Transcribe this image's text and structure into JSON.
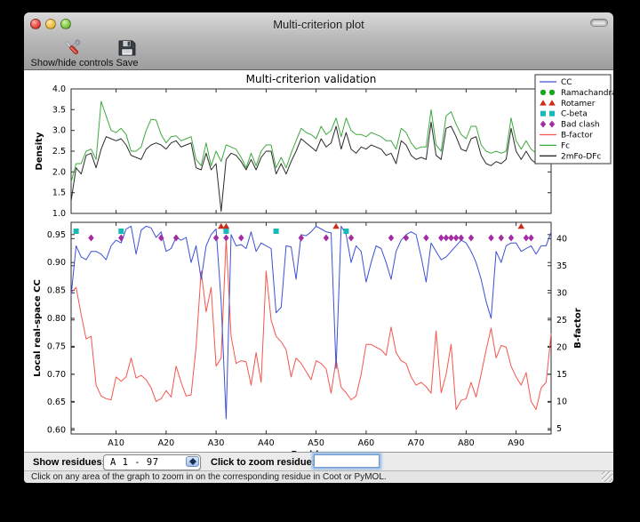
{
  "window": {
    "title": "Multi-criterion plot"
  },
  "toolbar": {
    "show_hide_label": "Show/hide controls",
    "save_label": "Save"
  },
  "controls": {
    "show_residues_label": "Show residues:",
    "residue_range_value": "A  1 - 97",
    "zoom_label": "Click to zoom residue:",
    "zoom_input_value": ""
  },
  "statusbar": {
    "text": "Click on any area of the graph to zoom in on the corresponding residue in Coot or PyMOL."
  },
  "chart_data": {
    "type": "line",
    "title": "Multi-criterion validation",
    "x_range": [
      1,
      97
    ],
    "x_unit": "residue",
    "top_plot": {
      "ylabel": "Density",
      "ylim": [
        1.0,
        4.0
      ],
      "yticks": [
        "1.0",
        "1.5",
        "2.0",
        "2.5",
        "3.0",
        "3.5",
        "4.0"
      ],
      "series": [
        {
          "name": "Fc",
          "color": "#3fa83f",
          "values": [
            1.75,
            2.2,
            2.2,
            2.5,
            2.55,
            2.3,
            3.7,
            3.35,
            3.0,
            2.95,
            3.05,
            2.9,
            2.5,
            2.5,
            2.6,
            3.0,
            3.27,
            3.25,
            2.9,
            2.7,
            2.85,
            2.87,
            2.75,
            2.8,
            2.85,
            2.3,
            2.15,
            2.7,
            2.15,
            2.5,
            2.25,
            2.65,
            2.6,
            2.55,
            2.35,
            2.1,
            2.45,
            2.15,
            2.5,
            2.65,
            2.65,
            2.1,
            2.35,
            2.1,
            2.45,
            2.75,
            3.05,
            2.95,
            2.9,
            2.8,
            3.1,
            2.9,
            3.0,
            3.3,
            2.85,
            3.3,
            3.0,
            2.9,
            2.9,
            2.85,
            2.95,
            2.9,
            2.85,
            2.75,
            2.75,
            2.55,
            3.05,
            2.95,
            2.7,
            2.55,
            2.6,
            2.6,
            3.5,
            2.65,
            2.5,
            3.35,
            3.45,
            3.15,
            2.9,
            2.8,
            3.1,
            3.1,
            2.65,
            2.5,
            2.45,
            2.5,
            2.45,
            2.5,
            3.3,
            2.75,
            2.55,
            2.75,
            2.55,
            2.45,
            2.6,
            3.55,
            3.4
          ]
        },
        {
          "name": "2mFo-DFc",
          "color": "#2b2b2b",
          "values": [
            1.3,
            2.1,
            1.95,
            2.4,
            2.45,
            2.1,
            2.55,
            2.85,
            2.8,
            2.75,
            2.8,
            2.65,
            2.4,
            2.35,
            2.3,
            2.55,
            2.65,
            2.7,
            2.65,
            2.55,
            2.7,
            2.75,
            2.6,
            2.65,
            2.7,
            2.1,
            2.05,
            2.45,
            2.05,
            2.2,
            1.05,
            2.3,
            2.45,
            2.4,
            2.25,
            2.05,
            2.3,
            2.05,
            2.35,
            2.5,
            2.5,
            1.95,
            2.2,
            1.95,
            2.25,
            2.5,
            2.8,
            2.7,
            2.6,
            2.5,
            2.8,
            2.6,
            2.7,
            3.1,
            2.55,
            2.95,
            2.55,
            2.45,
            2.6,
            2.55,
            2.65,
            2.6,
            2.55,
            2.4,
            2.45,
            2.2,
            2.75,
            2.65,
            2.4,
            2.3,
            2.35,
            2.3,
            3.2,
            2.4,
            2.3,
            3.05,
            3.1,
            2.85,
            2.55,
            2.5,
            2.8,
            2.85,
            2.4,
            2.2,
            2.15,
            2.25,
            2.2,
            2.3,
            3.05,
            2.5,
            2.3,
            2.5,
            2.3,
            2.2,
            2.35,
            3.2,
            3.1
          ]
        }
      ]
    },
    "bottom_plot": {
      "ylabel_left": "Local real-space CC",
      "ylabel_right": "B-factor",
      "xlabel": "Residue",
      "ylim_left": [
        0.593,
        0.972
      ],
      "yticks_left": [
        "0.60",
        "0.65",
        "0.70",
        "0.75",
        "0.80",
        "0.85",
        "0.90",
        "0.95"
      ],
      "ylim_right": [
        4.0,
        43.0
      ],
      "yticks_right": [
        "5",
        "10",
        "15",
        "20",
        "25",
        "30",
        "35",
        "40"
      ],
      "xticks": [
        10,
        20,
        30,
        40,
        50,
        60,
        70,
        80,
        90
      ],
      "xtick_labels": [
        "A10",
        "A20",
        "A30",
        "A40",
        "A50",
        "A60",
        "A70",
        "A80",
        "A90"
      ],
      "series": [
        {
          "name": "B-factor",
          "axis": "right",
          "color": "#f4564e",
          "values": [
            30,
            31,
            26,
            21.5,
            22,
            13,
            11,
            10.5,
            10.3,
            14.5,
            13.7,
            14.5,
            18,
            14.3,
            14.8,
            14,
            12.5,
            10,
            10.5,
            12,
            10.8,
            16.5,
            13.5,
            11,
            11.2,
            20,
            34,
            26.5,
            31,
            16.5,
            18,
            40,
            22,
            17,
            17.5,
            17.3,
            13,
            19,
            13.5,
            34,
            25,
            22,
            21,
            19.5,
            14.5,
            18,
            17,
            15.5,
            14,
            17.5,
            17,
            16,
            11.5,
            17.7,
            12.6,
            11.6,
            10.3,
            11,
            15,
            20.5,
            20.5,
            20,
            19.5,
            18.5,
            23.7,
            19,
            17.5,
            17,
            14.5,
            13,
            13.5,
            12.7,
            11.5,
            23,
            11.6,
            15,
            20.5,
            8.5,
            10.2,
            10.5,
            13.5,
            10.8,
            15,
            19.5,
            23.5,
            18,
            20.3,
            20,
            16.5,
            14.5,
            13,
            15.3,
            10,
            8.5,
            12.5,
            13.5,
            22.5
          ]
        },
        {
          "name": "CC",
          "axis": "left",
          "color": "#3d50d3",
          "values": [
            0.84,
            0.93,
            0.91,
            0.905,
            0.92,
            0.92,
            0.915,
            0.905,
            0.93,
            0.94,
            0.935,
            0.96,
            0.965,
            0.915,
            0.958,
            0.965,
            0.962,
            0.945,
            0.955,
            0.92,
            0.925,
            0.945,
            0.94,
            0.945,
            0.9,
            0.93,
            0.87,
            0.93,
            0.95,
            0.96,
            0.83,
            0.62,
            0.95,
            0.93,
            0.932,
            0.925,
            0.955,
            0.92,
            0.935,
            0.93,
            0.925,
            0.81,
            0.82,
            0.93,
            0.928,
            0.87,
            0.95,
            0.948,
            0.955,
            0.965,
            0.96,
            0.955,
            0.953,
            0.71,
            0.965,
            0.95,
            0.9,
            0.93,
            0.92,
            0.865,
            0.9,
            0.93,
            0.925,
            0.9,
            0.87,
            0.92,
            0.94,
            0.95,
            0.955,
            0.95,
            0.91,
            0.865,
            0.935,
            0.92,
            0.905,
            0.91,
            0.92,
            0.93,
            0.94,
            0.935,
            0.92,
            0.9,
            0.87,
            0.83,
            0.8,
            0.92,
            0.9,
            0.93,
            0.935,
            0.935,
            0.92,
            0.925,
            0.93,
            0.915,
            0.93,
            0.93,
            0.955
          ]
        }
      ],
      "outlier_markers": [
        {
          "name": "Ramachandran",
          "shape": "circle",
          "color": "#1ea31e",
          "residues": []
        },
        {
          "name": "Rotamer",
          "shape": "triangle",
          "color": "#cc2d1a",
          "residues": [
            31,
            32,
            54,
            91
          ]
        },
        {
          "name": "C-beta",
          "shape": "square",
          "color": "#17b8b8",
          "residues": [
            2,
            11,
            32,
            42,
            56
          ]
        },
        {
          "name": "Bad clash",
          "shape": "diamond",
          "color": "#a32da3",
          "residues": [
            5,
            11,
            19,
            22,
            30,
            32,
            35,
            47,
            52,
            57,
            65,
            68,
            72,
            75,
            76,
            77,
            78,
            79,
            81,
            85,
            87,
            89,
            92,
            93
          ]
        }
      ]
    },
    "legend": {
      "position": "upper right",
      "entries": [
        {
          "label": "CC",
          "symbol": "line",
          "color": "#3d50d3"
        },
        {
          "label": "Ramachandran",
          "symbol": "markers",
          "shape": "circle",
          "color": "#1ea31e"
        },
        {
          "label": "Rotamer",
          "symbol": "markers",
          "shape": "triangle",
          "color": "#cc2d1a"
        },
        {
          "label": "C-beta",
          "symbol": "markers",
          "shape": "square",
          "color": "#17b8b8"
        },
        {
          "label": "Bad clash",
          "symbol": "markers",
          "shape": "diamond",
          "color": "#a32da3"
        },
        {
          "label": "B-factor",
          "symbol": "line",
          "color": "#f4564e"
        },
        {
          "label": "Fc",
          "symbol": "line",
          "color": "#3fa83f"
        },
        {
          "label": "2mFo-DFc",
          "symbol": "line",
          "color": "#2b2b2b"
        }
      ]
    }
  }
}
